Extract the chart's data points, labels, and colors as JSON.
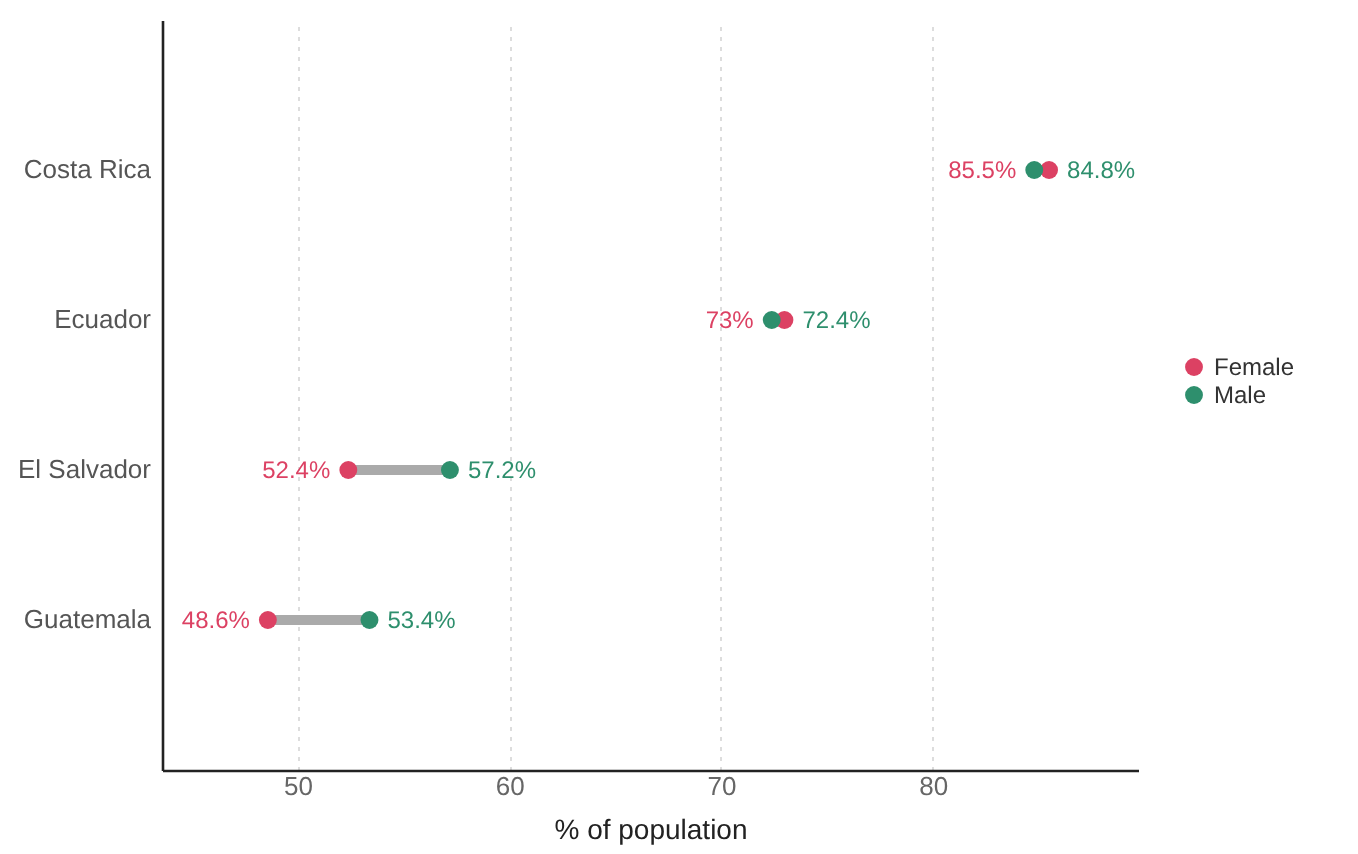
{
  "chart_data": {
    "type": "scatter",
    "orientation": "horizontal",
    "xlabel": "% of population",
    "categories": [
      "Costa Rica",
      "Ecuador",
      "El Salvador",
      "Guatemala"
    ],
    "series": [
      {
        "name": "Female",
        "color": "#dc4163",
        "values": [
          85.5,
          73,
          52.4,
          48.6
        ],
        "value_labels": [
          "85.5%",
          "73%",
          "52.4%",
          "48.6%"
        ]
      },
      {
        "name": "Male",
        "color": "#2e8f6d",
        "values": [
          84.8,
          72.4,
          57.2,
          53.4
        ],
        "value_labels": [
          "84.8%",
          "72.4%",
          "57.2%",
          "53.4%"
        ]
      }
    ],
    "xlim": [
      43.6,
      89.7
    ],
    "xticks": [
      50,
      60,
      70,
      80
    ],
    "grid": "x",
    "legend": "right",
    "marker": "circle"
  }
}
